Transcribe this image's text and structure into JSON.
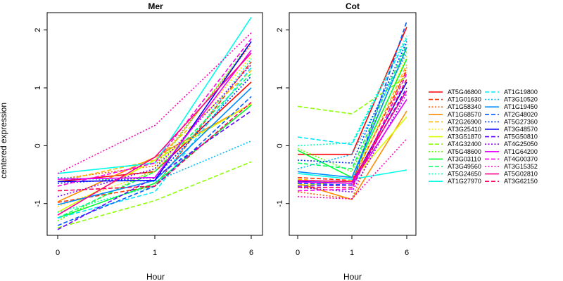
{
  "chart_data": {
    "type": "line",
    "ylabel": "centered expression",
    "xlabel": "Hour",
    "x_ticks": [
      "0",
      "1",
      "6"
    ],
    "y_ticks": [
      -1,
      0,
      1,
      2
    ],
    "ylim": [
      -1.55,
      2.3
    ],
    "legend_position": "right",
    "legend": [
      {
        "name": "AT5G46800",
        "color": "#FF0000",
        "dash": "solid"
      },
      {
        "name": "AT1G01630",
        "color": "#FF2E00",
        "dash": "dashed"
      },
      {
        "name": "AT1G58340",
        "color": "#FF5D00",
        "dash": "dotted"
      },
      {
        "name": "AT1G68570",
        "color": "#FF8B00",
        "dash": "solid"
      },
      {
        "name": "AT2G26900",
        "color": "#FFB900",
        "dash": "dashed"
      },
      {
        "name": "AT3G25410",
        "color": "#FFE800",
        "dash": "dotted"
      },
      {
        "name": "AT3G51870",
        "color": "#DCFF00",
        "dash": "solid"
      },
      {
        "name": "AT4G32400",
        "color": "#8BFF00",
        "dash": "dashed"
      },
      {
        "name": "AT5G48600",
        "color": "#5DFF00",
        "dash": "dotted"
      },
      {
        "name": "AT3G03110",
        "color": "#00FF2E",
        "dash": "solid"
      },
      {
        "name": "AT3G49560",
        "color": "#00FF5D",
        "dash": "dashed"
      },
      {
        "name": "AT5G24650",
        "color": "#00FFB9",
        "dash": "dotted"
      },
      {
        "name": "AT1G27970",
        "color": "#00FFE8",
        "dash": "solid"
      },
      {
        "name": "AT1G19800",
        "color": "#00E8FF",
        "dash": "dashed"
      },
      {
        "name": "AT3G10520",
        "color": "#00B9FF",
        "dash": "dotted"
      },
      {
        "name": "AT1G19450",
        "color": "#008BFF",
        "dash": "solid"
      },
      {
        "name": "AT2G48020",
        "color": "#005DFF",
        "dash": "dashed"
      },
      {
        "name": "AT5G27360",
        "color": "#002EFF",
        "dash": "dotted"
      },
      {
        "name": "AT3G48570",
        "color": "#0000FF",
        "dash": "solid"
      },
      {
        "name": "AT5G50810",
        "color": "#5D00FF",
        "dash": "dashed"
      },
      {
        "name": "AT4G25050",
        "color": "#8B00FF",
        "dash": "dotted"
      },
      {
        "name": "AT1G64200",
        "color": "#E800FF",
        "dash": "solid"
      },
      {
        "name": "AT4G00370",
        "color": "#FF00E8",
        "dash": "dashed"
      },
      {
        "name": "AT3G15352",
        "color": "#FF00B9",
        "dash": "dotted"
      },
      {
        "name": "AT5G02810",
        "color": "#FF008B",
        "dash": "solid"
      },
      {
        "name": "AT3G62150",
        "color": "#FF005D",
        "dash": "dashed"
      }
    ],
    "panels": [
      {
        "title": "Mer",
        "series": [
          {
            "values": [
              -0.62,
              -0.45,
              1.1
            ]
          },
          {
            "values": [
              -0.98,
              -0.7,
              1.45
            ]
          },
          {
            "values": [
              -0.58,
              -0.35,
              1.75
            ]
          },
          {
            "values": [
              -0.97,
              -0.2,
              0.72
            ]
          },
          {
            "values": [
              -0.62,
              -0.25,
              1.3
            ]
          },
          {
            "values": [
              -1.05,
              -0.45,
              1.55
            ]
          },
          {
            "values": [
              -1.15,
              -0.25,
              0.72
            ]
          },
          {
            "values": [
              -1.42,
              -0.95,
              -0.28
            ]
          },
          {
            "values": [
              -1.3,
              -0.4,
              1.8
            ]
          },
          {
            "values": [
              -1.25,
              -0.65,
              0.7
            ]
          },
          {
            "values": [
              -1.25,
              -0.45,
              1.25
            ]
          },
          {
            "values": [
              -1.15,
              -0.7,
              1.5
            ]
          },
          {
            "values": [
              -0.48,
              -0.3,
              2.22
            ]
          },
          {
            "values": [
              -1.25,
              -0.8,
              1.35
            ]
          },
          {
            "values": [
              -0.55,
              -0.62,
              0.08
            ]
          },
          {
            "values": [
              -1.02,
              -0.6,
              1.0
            ]
          },
          {
            "values": [
              -1.38,
              -0.7,
              0.85
            ]
          },
          {
            "values": [
              -0.65,
              -0.55,
              1.2
            ]
          },
          {
            "values": [
              -0.62,
              -0.6,
              1.8
            ]
          },
          {
            "values": [
              -1.45,
              -0.55,
              0.6
            ]
          },
          {
            "values": [
              -0.88,
              -0.4,
              1.4
            ]
          },
          {
            "values": [
              -0.58,
              -0.55,
              1.65
            ]
          },
          {
            "values": [
              -0.7,
              -0.3,
              1.85
            ]
          },
          {
            "values": [
              -0.48,
              0.35,
              1.95
            ]
          },
          {
            "values": [
              -1.2,
              -0.2,
              1.6
            ]
          },
          {
            "values": [
              -0.78,
              -0.7,
              0.75
            ]
          }
        ]
      },
      {
        "title": "Cot",
        "series": [
          {
            "values": [
              -0.15,
              -0.15,
              2.05
            ]
          },
          {
            "values": [
              -0.55,
              -0.6,
              1.3
            ]
          },
          {
            "values": [
              -0.8,
              -0.92,
              1.35
            ]
          },
          {
            "values": [
              -0.65,
              -0.93,
              0.6
            ]
          },
          {
            "values": [
              -0.58,
              -0.65,
              1.4
            ]
          },
          {
            "values": [
              -0.68,
              -0.62,
              1.55
            ]
          },
          {
            "values": [
              -0.7,
              -0.6,
              0.5
            ]
          },
          {
            "values": [
              0.68,
              0.55,
              1.2
            ]
          },
          {
            "values": [
              -0.05,
              -0.45,
              1.65
            ]
          },
          {
            "values": [
              -0.08,
              -0.55,
              1.5
            ]
          },
          {
            "values": [
              -0.3,
              -0.4,
              1.75
            ]
          },
          {
            "values": [
              0.0,
              0.05,
              1.9
            ]
          },
          {
            "values": [
              -0.48,
              -0.58,
              -0.42
            ]
          },
          {
            "values": [
              0.15,
              0.02,
              1.85
            ]
          },
          {
            "values": [
              -0.4,
              -0.15,
              1.6
            ]
          },
          {
            "values": [
              -0.45,
              -0.55,
              1.7
            ]
          },
          {
            "values": [
              -0.65,
              -0.68,
              2.15
            ]
          },
          {
            "values": [
              -0.25,
              -0.3,
              1.8
            ]
          },
          {
            "values": [
              -0.62,
              -0.65,
              1.1
            ]
          },
          {
            "values": [
              -0.7,
              -0.68,
              1.0
            ]
          },
          {
            "values": [
              -0.72,
              -0.8,
              0.9
            ]
          },
          {
            "values": [
              -0.63,
              -0.65,
              0.8
            ]
          },
          {
            "values": [
              -0.78,
              -0.75,
              1.25
            ]
          },
          {
            "values": [
              -0.88,
              -0.92,
              0.12
            ]
          },
          {
            "values": [
              -0.6,
              -0.62,
              0.95
            ]
          },
          {
            "values": [
              -0.72,
              -0.72,
              1.15
            ]
          }
        ]
      }
    ]
  }
}
